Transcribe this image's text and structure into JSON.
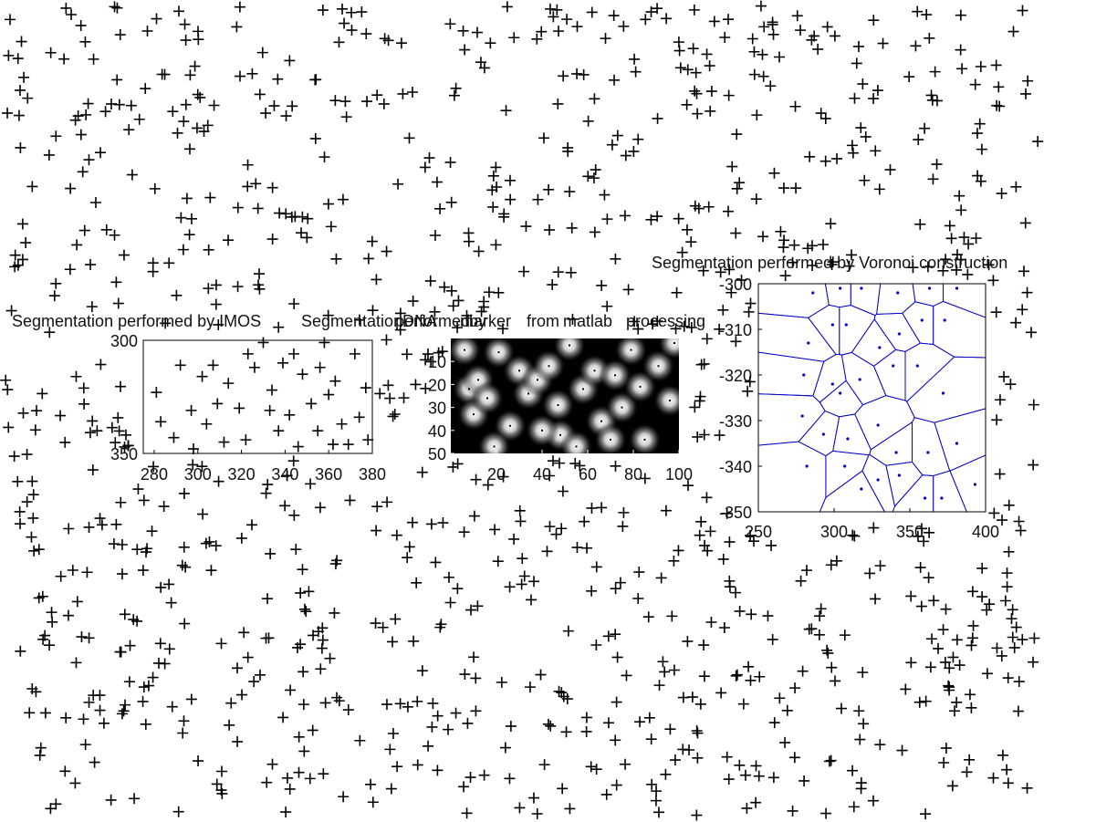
{
  "colors": {
    "background": "#ffffff",
    "marker": "#000000",
    "voronoi": "#0000cc"
  },
  "chart_data": [
    {
      "type": "scatter",
      "role": "background",
      "marker": "+",
      "color": "#000000",
      "title": "",
      "count": 1000,
      "distribution": "uniform random field with a blank window behind the three panels"
    },
    {
      "type": "scatter",
      "title": "Segmentation performed by IMOS",
      "marker": "+",
      "xlim": [
        275,
        380
      ],
      "ylim": [
        300,
        350
      ],
      "y_reversed": true,
      "xticks": [
        "280",
        "300",
        "320",
        "340",
        "360",
        "380"
      ],
      "yticks": [
        "300",
        "350"
      ],
      "points": [
        [
          281,
          323
        ],
        [
          283,
          336
        ],
        [
          292,
          311
        ],
        [
          297,
          331
        ],
        [
          302,
          316
        ],
        [
          304,
          337
        ],
        [
          307,
          311
        ],
        [
          309,
          328
        ],
        [
          312,
          345
        ],
        [
          319,
          330
        ],
        [
          322,
          344
        ],
        [
          323,
          306
        ],
        [
          326,
          312
        ],
        [
          333,
          331
        ],
        [
          334,
          322
        ],
        [
          337,
          340
        ],
        [
          339,
          310
        ],
        [
          342,
          333
        ],
        [
          346,
          347
        ],
        [
          348,
          315
        ],
        [
          352,
          328
        ],
        [
          355,
          340
        ],
        [
          356,
          312
        ],
        [
          360,
          324
        ],
        [
          363,
          318
        ],
        [
          366,
          337
        ],
        [
          369,
          346
        ],
        [
          372,
          306
        ],
        [
          374,
          334
        ],
        [
          377,
          321
        ],
        [
          362,
          346
        ],
        [
          344,
          306
        ],
        [
          314,
          319
        ],
        [
          289,
          343
        ],
        [
          330,
          301
        ],
        [
          358,
          301
        ],
        [
          378,
          344
        ],
        [
          298,
          348
        ]
      ]
    },
    {
      "type": "heatmap",
      "title": "Segmentation performed by DNA marker from matlab processing",
      "title_fragments": [
        "Segmentation",
        "performed",
        "by",
        "DNA",
        "marker",
        "from",
        "matlab",
        "processing"
      ],
      "colormap": "gray",
      "xlim": [
        0,
        100
      ],
      "ylim": [
        0,
        50
      ],
      "y_reversed": true,
      "xticks": [
        "20",
        "40",
        "60",
        "80",
        "100"
      ],
      "yticks": [
        "10",
        "20",
        "30",
        "40",
        "50"
      ],
      "blobs": [
        [
          6,
          5
        ],
        [
          8,
          22
        ],
        [
          12,
          18
        ],
        [
          10,
          33
        ],
        [
          16,
          26
        ],
        [
          21,
          6
        ],
        [
          26,
          38
        ],
        [
          30,
          14
        ],
        [
          34,
          24
        ],
        [
          38,
          18
        ],
        [
          43,
          12
        ],
        [
          47,
          29
        ],
        [
          48,
          42
        ],
        [
          52,
          3
        ],
        [
          58,
          22
        ],
        [
          63,
          14
        ],
        [
          66,
          36
        ],
        [
          72,
          16
        ],
        [
          75,
          30
        ],
        [
          79,
          5
        ],
        [
          83,
          21
        ],
        [
          85,
          44
        ],
        [
          91,
          12
        ],
        [
          96,
          27
        ],
        [
          98,
          2
        ],
        [
          19,
          47
        ],
        [
          55,
          47
        ],
        [
          70,
          44
        ],
        [
          40,
          40
        ]
      ]
    },
    {
      "type": "scatter",
      "title": "Segmentation performed by Voronoi construction",
      "marker": ".",
      "color": "#0000cc",
      "xlim": [
        250,
        400
      ],
      "ylim": [
        -350,
        -300
      ],
      "xticks": [
        "250",
        "300",
        "350",
        "400"
      ],
      "yticks": [
        "-300",
        "-310",
        "-320",
        "-330",
        "-340",
        "-350"
      ],
      "points": [
        [
          286,
          -302
        ],
        [
          304,
          -301
        ],
        [
          318,
          -301
        ],
        [
          342,
          -302
        ],
        [
          363,
          -301
        ],
        [
          381,
          -301
        ],
        [
          283,
          -313
        ],
        [
          299,
          -309
        ],
        [
          308,
          -309
        ],
        [
          330,
          -314
        ],
        [
          343,
          -311
        ],
        [
          358,
          -308
        ],
        [
          373,
          -308
        ],
        [
          280,
          -320
        ],
        [
          299,
          -322
        ],
        [
          304,
          -324
        ],
        [
          317,
          -321
        ],
        [
          339,
          -318
        ],
        [
          355,
          -318
        ],
        [
          372,
          -324
        ],
        [
          279,
          -329
        ],
        [
          293,
          -333
        ],
        [
          309,
          -334
        ],
        [
          329,
          -331
        ],
        [
          341,
          -337
        ],
        [
          362,
          -337
        ],
        [
          381,
          -335
        ],
        [
          282,
          -340
        ],
        [
          307,
          -340
        ],
        [
          318,
          -345
        ],
        [
          329,
          -343
        ],
        [
          343,
          -342
        ],
        [
          360,
          -347
        ],
        [
          371,
          -347
        ],
        [
          393,
          -344
        ]
      ]
    }
  ]
}
